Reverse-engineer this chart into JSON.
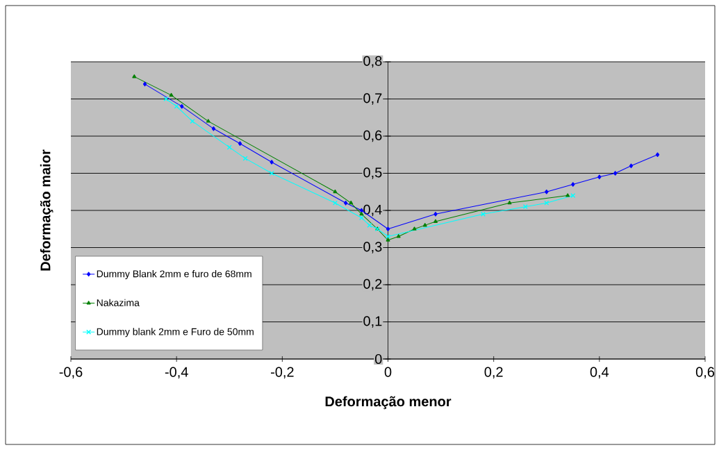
{
  "chart_data": {
    "type": "line",
    "xlabel": "Deformação menor",
    "ylabel": "Deformação maior",
    "xlim": [
      -0.6,
      0.6
    ],
    "ylim": [
      0,
      0.8
    ],
    "xticks": [
      {
        "value": -0.6,
        "label": "-0,6"
      },
      {
        "value": -0.4,
        "label": "-0,4"
      },
      {
        "value": -0.2,
        "label": "-0,2"
      },
      0,
      {
        "value": 0.2,
        "label": "0,2"
      },
      {
        "value": 0.4,
        "label": "0,4"
      },
      {
        "value": 0.6,
        "label": "0,6"
      }
    ],
    "yticks": [
      0,
      {
        "value": 0.1,
        "label": "0,1"
      },
      {
        "value": 0.2,
        "label": "0,2"
      },
      {
        "value": 0.3,
        "label": "0,3"
      },
      {
        "value": 0.4,
        "label": "0,4"
      },
      {
        "value": 0.5,
        "label": "0,5"
      },
      {
        "value": 0.6,
        "label": "0,6"
      },
      {
        "value": 0.7,
        "label": "0,7"
      },
      {
        "value": 0.8,
        "label": "0,8"
      }
    ],
    "grid": "y",
    "legend": "bottom left",
    "line_style": "solid",
    "series": [
      {
        "name": "Dummy Blank 2mm e furo de 68mm",
        "color": "#0000ff",
        "marker": "diamond",
        "x": [
          -0.46,
          -0.39,
          -0.33,
          -0.28,
          -0.22,
          -0.08,
          -0.05,
          0,
          0.09,
          0.3,
          0.35,
          0.4,
          0.43,
          0.46,
          0.51
        ],
        "values": [
          0.74,
          0.68,
          0.62,
          0.58,
          0.53,
          0.42,
          0.4,
          0.35,
          0.39,
          0.45,
          0.47,
          0.49,
          0.5,
          0.52,
          0.55
        ]
      },
      {
        "name": "Nakazima",
        "color": "#008000",
        "marker": "triangle",
        "x": [
          -0.48,
          -0.41,
          -0.34,
          -0.1,
          -0.07,
          -0.05,
          -0.02,
          0,
          0.02,
          0.05,
          0.07,
          0.09,
          0.23,
          0.34
        ],
        "values": [
          0.76,
          0.71,
          0.64,
          0.45,
          0.42,
          0.39,
          0.35,
          0.32,
          0.33,
          0.35,
          0.36,
          0.37,
          0.42,
          0.44
        ]
      },
      {
        "name": "Dummy blank 2mm e Furo de 50mm",
        "color": "#00ffff",
        "marker": "cross",
        "x": [
          -0.42,
          -0.4,
          -0.37,
          -0.3,
          -0.27,
          -0.22,
          -0.1,
          -0.05,
          -0.035,
          -0.02,
          0,
          0.18,
          0.26,
          0.3,
          0.35
        ],
        "values": [
          0.7,
          0.68,
          0.64,
          0.57,
          0.54,
          0.5,
          0.42,
          0.38,
          0.36,
          0.35,
          0.33,
          0.39,
          0.41,
          0.42,
          0.44
        ]
      }
    ]
  }
}
